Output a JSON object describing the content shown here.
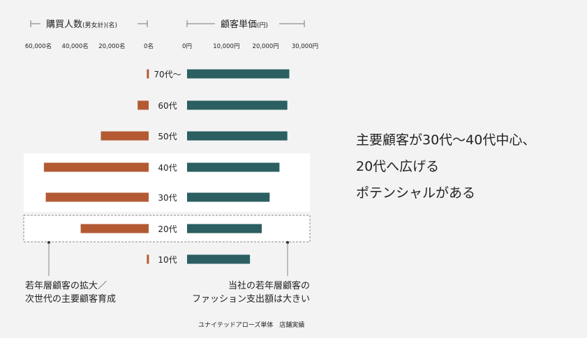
{
  "chart_data": {
    "type": "bar",
    "categories": [
      "70代〜",
      "60代",
      "50代",
      "40代",
      "30代",
      "20代",
      "10代"
    ],
    "left_panel": {
      "title": "購買人数",
      "unit": "(男女計)(名)",
      "xlim": [
        0,
        60000
      ],
      "ticks": [
        60000,
        40000,
        20000,
        0
      ],
      "tick_labels": [
        "60,000名",
        "40,000名",
        "20,000名",
        "0名"
      ],
      "color": "#b35a33",
      "values": [
        1000,
        6000,
        26000,
        57000,
        56000,
        37000,
        1000
      ]
    },
    "right_panel": {
      "title": "顧客単価",
      "unit": "(円)",
      "xlim": [
        0,
        30000
      ],
      "ticks": [
        0,
        10000,
        20000,
        30000
      ],
      "tick_labels": [
        "0円",
        "10,000円",
        "20,000円",
        "30,000円"
      ],
      "color": "#2b5f62",
      "values": [
        26000,
        25500,
        25500,
        23500,
        21000,
        19000,
        16000
      ]
    },
    "highlight_solid": [
      "40代",
      "30代"
    ],
    "highlight_dashed": [
      "20代"
    ]
  },
  "headline": {
    "lines": [
      "主要顧客が30代〜40代中心、",
      "20代へ広げる",
      "ポテンシャルがある"
    ]
  },
  "annotations": {
    "left": [
      "若年層顧客の拡大／",
      "次世代の主要顧客育成"
    ],
    "right": [
      "当社の若年層顧客の",
      "ファッション支出額は大きい"
    ]
  },
  "source": "ユナイテッドアローズ単体　店舗実績"
}
